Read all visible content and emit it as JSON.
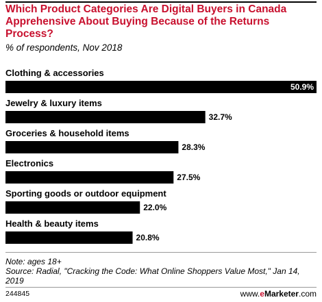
{
  "title": "Which Product Categories Are Digital Buyers in Canada Apprehensive About Buying Because of the Returns Process?",
  "subtitle": "% of respondents, Nov 2018",
  "note_line": "Note: ages 18+",
  "source_line": "Source: Radial, \"Cracking the Code: What Online Shoppers Value Most,\" Jan 14, 2019",
  "footer_id": "244845",
  "footer_logo": {
    "prefix": "www.",
    "brand": "e",
    "rest": "Marketer",
    "suffix": ".com"
  },
  "colors": {
    "title": "#c8102e",
    "bar": "#000000",
    "value_inside": "#ffffff",
    "value_outside": "#000000"
  },
  "chart_data": {
    "type": "bar",
    "orientation": "horizontal",
    "categories": [
      "Clothing & accessories",
      "Jewelry & luxury items",
      "Groceries & household items",
      "Electronics",
      "Sporting goods or outdoor equipment",
      "Health & beauty items"
    ],
    "values": [
      50.9,
      32.7,
      28.3,
      27.5,
      22.0,
      20.8
    ],
    "value_labels": [
      "50.9%",
      "32.7%",
      "28.3%",
      "27.5%",
      "22.0%",
      "20.8%"
    ],
    "xlim": [
      0,
      50.9
    ],
    "grid": false,
    "legend": "none"
  }
}
